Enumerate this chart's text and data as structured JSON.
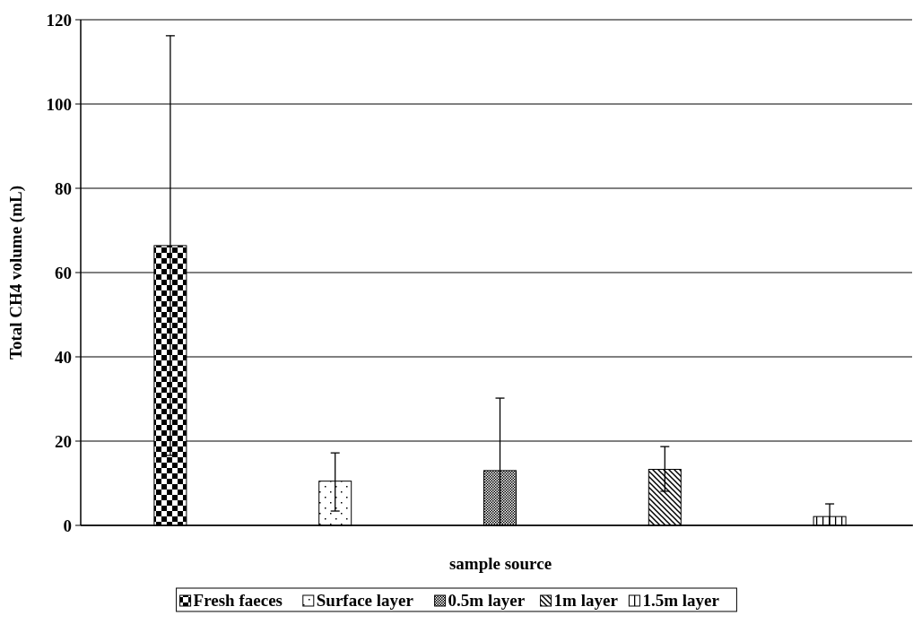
{
  "chart_data": {
    "type": "bar",
    "xlabel": "sample source",
    "ylabel": "Total CH4 volume (mL)",
    "categories": [
      null
    ],
    "series": [
      {
        "name": "Fresh faeces",
        "color": "#000000",
        "values": [
          66.4
        ],
        "errors": [
          [
            16.6,
            116.2
          ]
        ]
      },
      {
        "name": "Surface layer",
        "color": "#000000",
        "values": [
          10.5
        ],
        "errors": [
          [
            3.4,
            17.2
          ]
        ]
      },
      {
        "name": "0.5m layer",
        "color": "#000000",
        "values": [
          13.0
        ],
        "errors": [
          [
            0,
            30.2
          ]
        ]
      },
      {
        "name": "1m layer",
        "color": "#000000",
        "values": [
          13.3
        ],
        "errors": [
          [
            8.1,
            18.7
          ]
        ]
      },
      {
        "name": "1.5m layer",
        "color": "#000000",
        "values": [
          2.1
        ],
        "errors": [
          [
            0,
            5.1
          ]
        ]
      }
    ],
    "ylim": [
      0,
      120
    ],
    "yticks": [
      0,
      20,
      40,
      60,
      80,
      100,
      120
    ],
    "grid": "y",
    "legend": "bottom"
  }
}
